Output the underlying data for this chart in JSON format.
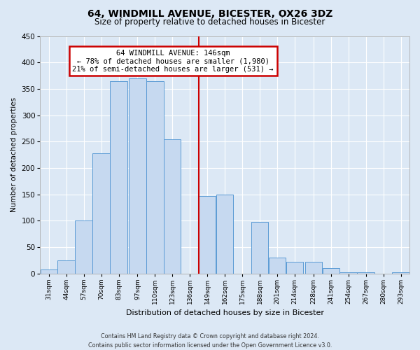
{
  "title": "64, WINDMILL AVENUE, BICESTER, OX26 3DZ",
  "subtitle": "Size of property relative to detached houses in Bicester",
  "xlabel": "Distribution of detached houses by size in Bicester",
  "ylabel": "Number of detached properties",
  "bin_labels": [
    "31sqm",
    "44sqm",
    "57sqm",
    "70sqm",
    "83sqm",
    "97sqm",
    "110sqm",
    "123sqm",
    "136sqm",
    "149sqm",
    "162sqm",
    "175sqm",
    "188sqm",
    "201sqm",
    "214sqm",
    "228sqm",
    "241sqm",
    "254sqm",
    "267sqm",
    "280sqm",
    "293sqm"
  ],
  "bin_left_edges": [
    31,
    44,
    57,
    70,
    83,
    97,
    110,
    123,
    136,
    149,
    162,
    175,
    188,
    201,
    214,
    228,
    241,
    254,
    267,
    280,
    293
  ],
  "bin_width": 13,
  "bar_heights": [
    8,
    25,
    100,
    228,
    365,
    370,
    365,
    255,
    0,
    147,
    150,
    0,
    98,
    30,
    22,
    22,
    10,
    2,
    2,
    0,
    2
  ],
  "bar_color": "#c6d9f0",
  "bar_edge_color": "#5b9bd5",
  "property_line_x": 149,
  "property_line_color": "#cc0000",
  "ylim": [
    0,
    450
  ],
  "yticks": [
    0,
    50,
    100,
    150,
    200,
    250,
    300,
    350,
    400,
    450
  ],
  "annotation_title": "64 WINDMILL AVENUE: 146sqm",
  "annotation_line1": "← 78% of detached houses are smaller (1,980)",
  "annotation_line2": "21% of semi-detached houses are larger (531) →",
  "annotation_box_facecolor": "#ffffff",
  "annotation_box_edgecolor": "#cc0000",
  "footer_line1": "Contains HM Land Registry data © Crown copyright and database right 2024.",
  "footer_line2": "Contains public sector information licensed under the Open Government Licence v3.0.",
  "background_color": "#dce8f5",
  "plot_bg_color": "#dce8f5",
  "grid_color": "#ffffff",
  "spine_color": "#aaaaaa"
}
